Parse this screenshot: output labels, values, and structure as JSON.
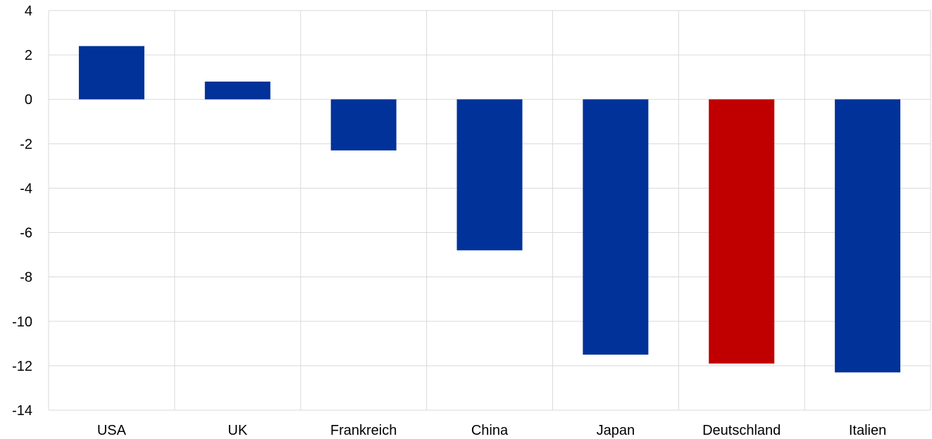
{
  "chart_data": {
    "type": "bar",
    "categories": [
      "USA",
      "UK",
      "Frankreich",
      "China",
      "Japan",
      "Deutschland",
      "Italien"
    ],
    "values": [
      2.4,
      0.8,
      -2.3,
      -6.8,
      -11.5,
      -11.9,
      -12.3
    ],
    "title": "",
    "xlabel": "",
    "ylabel": "",
    "ylim": [
      -14,
      4
    ],
    "yticks": [
      4,
      2,
      0,
      -2,
      -4,
      -6,
      -8,
      -10,
      -12,
      -14
    ],
    "grid": true,
    "legend": "none",
    "colors": {
      "default": "#003299",
      "highlight": "#c00000",
      "highlight_category": "Deutschland"
    }
  }
}
